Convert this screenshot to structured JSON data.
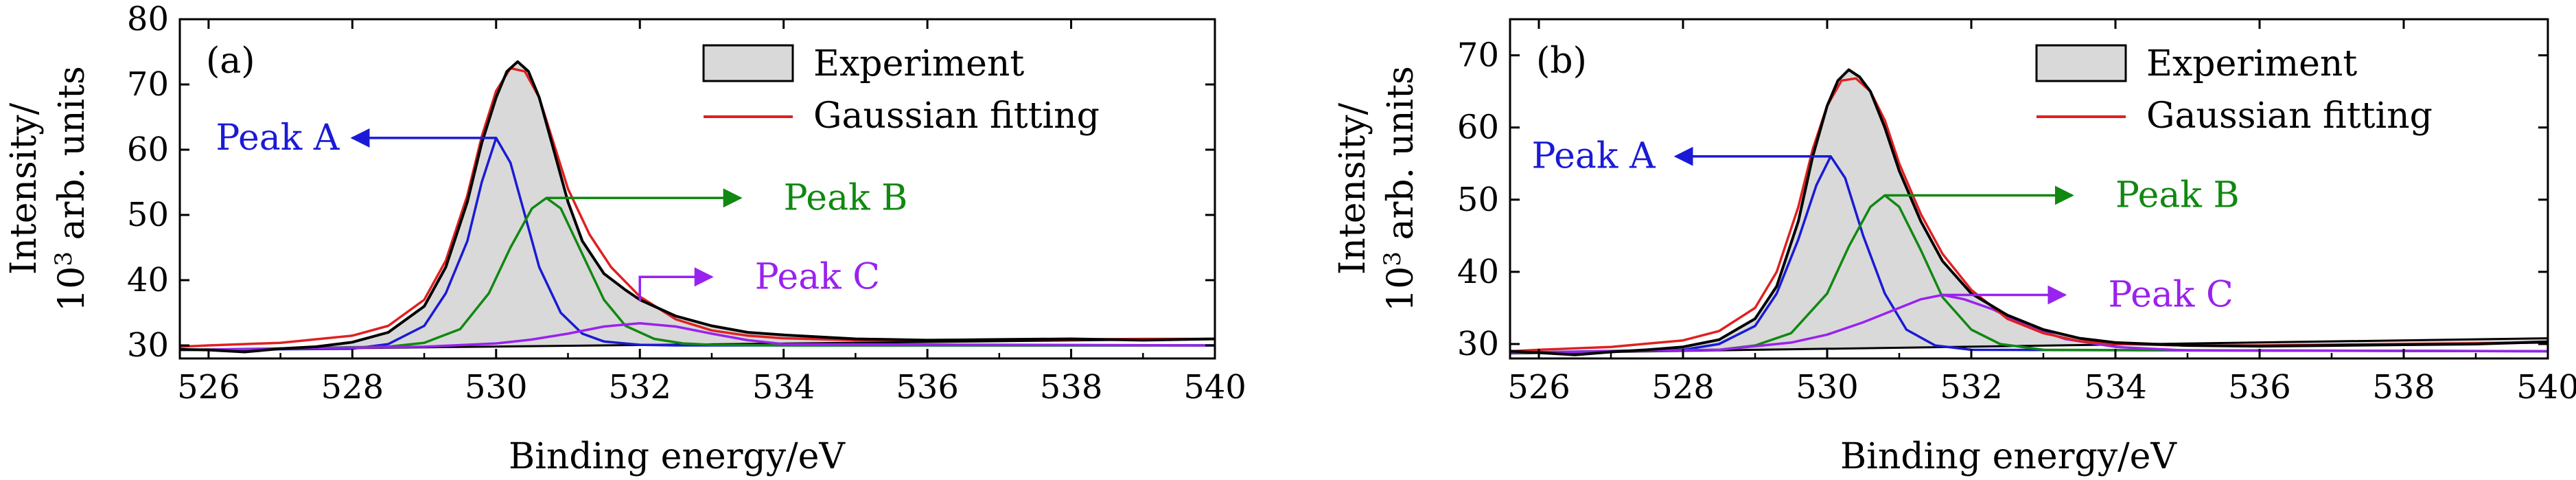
{
  "chart_data": [
    {
      "type": "line",
      "panel_label": "(a)",
      "xlabel": "Binding energy/eV",
      "ylabel_line1": "Intensity/",
      "ylabel_line2_base": "10",
      "ylabel_line2_sup": "3",
      "ylabel_line2_rest": " arb. units",
      "xlim": [
        525.6,
        540
      ],
      "ylim": [
        28,
        80
      ],
      "xticks": [
        526,
        528,
        530,
        532,
        534,
        536,
        538,
        540
      ],
      "yticks": [
        30,
        40,
        50,
        60,
        70,
        80
      ],
      "legend_position": "top-right",
      "legend": [
        {
          "label": "Experiment",
          "kind": "box"
        },
        {
          "label": "Gaussian fitting",
          "kind": "line"
        }
      ],
      "baseline": {
        "x": [
          525.6,
          540
        ],
        "y": [
          29.3,
          31.0
        ]
      },
      "series": [
        {
          "name": "Experiment",
          "role": "experiment",
          "x": [
            525.6,
            526.0,
            526.5,
            527.0,
            527.5,
            528.0,
            528.5,
            529.0,
            529.3,
            529.6,
            529.8,
            530.0,
            530.15,
            530.3,
            530.45,
            530.6,
            530.8,
            531.0,
            531.2,
            531.5,
            531.8,
            532.0,
            532.5,
            533.0,
            533.5,
            534.0,
            535.0,
            536.0,
            537.0,
            538.0,
            539.0,
            540.0
          ],
          "y": [
            29.4,
            29.3,
            29.0,
            29.5,
            29.8,
            30.5,
            32.0,
            36.0,
            42.0,
            52.0,
            61.0,
            68.0,
            72.0,
            73.5,
            72.0,
            68.0,
            60.0,
            52.0,
            46.0,
            41.0,
            38.5,
            37.0,
            34.5,
            33.0,
            32.0,
            31.6,
            31.0,
            30.8,
            30.9,
            31.0,
            30.8,
            31.0
          ]
        },
        {
          "name": "Gaussian fitting",
          "role": "fit",
          "x": [
            525.6,
            526.0,
            527.0,
            528.0,
            528.5,
            529.0,
            529.3,
            529.6,
            529.8,
            530.0,
            530.2,
            530.4,
            530.6,
            530.8,
            531.0,
            531.3,
            531.6,
            532.0,
            532.5,
            533.0,
            533.5,
            534.0,
            535.0,
            536.0,
            537.0,
            538.0,
            539.0,
            540.0
          ],
          "y": [
            29.8,
            30.0,
            30.4,
            31.5,
            33.0,
            37.0,
            43.0,
            53.0,
            62.0,
            69.0,
            72.5,
            72.0,
            68.0,
            61.0,
            54.0,
            47.0,
            42.0,
            37.5,
            34.0,
            32.3,
            31.5,
            31.1,
            30.8,
            30.8,
            30.9,
            30.9,
            31.0,
            31.0
          ]
        },
        {
          "name": "Peak A",
          "role": "peak",
          "center": 530.0,
          "amplitude": 61.8,
          "sigma": 0.55,
          "x": [
            525.6,
            528.0,
            528.5,
            529.0,
            529.3,
            529.6,
            529.8,
            530.0,
            530.2,
            530.4,
            530.6,
            530.9,
            531.2,
            531.5,
            532.0,
            532.5,
            533.0,
            540.0
          ],
          "y": [
            29.3,
            29.5,
            30.2,
            33.0,
            38.0,
            46.0,
            55.0,
            61.8,
            58.0,
            50.0,
            42.0,
            35.0,
            31.8,
            30.6,
            30.1,
            30.0,
            30.0,
            30.0
          ]
        },
        {
          "name": "Peak B",
          "role": "peak",
          "center": 530.7,
          "amplitude": 52.6,
          "sigma": 0.5,
          "x": [
            525.6,
            528.5,
            529.0,
            529.5,
            529.9,
            530.2,
            530.5,
            530.7,
            530.9,
            531.2,
            531.5,
            531.8,
            532.2,
            532.6,
            533.0,
            534.0,
            540.0
          ],
          "y": [
            29.3,
            29.8,
            30.4,
            32.5,
            38.0,
            45.0,
            51.0,
            52.6,
            51.0,
            44.0,
            37.0,
            33.0,
            31.0,
            30.3,
            30.1,
            30.0,
            30.0
          ]
        },
        {
          "name": "Peak C",
          "role": "peak",
          "center": 532.0,
          "amplitude": 33.4,
          "sigma": 0.8,
          "x": [
            525.6,
            529.0,
            530.0,
            530.5,
            531.0,
            531.5,
            532.0,
            532.5,
            533.0,
            533.5,
            534.0,
            540.0
          ],
          "y": [
            29.3,
            29.8,
            30.3,
            30.9,
            31.8,
            32.9,
            33.4,
            32.9,
            31.8,
            30.8,
            30.2,
            30.0
          ]
        }
      ],
      "annotations": [
        {
          "text": "Peak A",
          "color": "#1a1ad6",
          "from": [
            530.0,
            61.8
          ],
          "to": [
            528.0,
            61.8
          ],
          "text_x": 526.1
        },
        {
          "text": "Peak B",
          "color": "#118811",
          "from": [
            530.7,
            52.6
          ],
          "to": [
            533.4,
            52.6
          ],
          "text_x": 534.0
        },
        {
          "text": "Peak C",
          "color": "#9922ee",
          "from": [
            532.0,
            36.8
          ],
          "to": [
            532.0,
            40.5
          ],
          "turn_to": [
            533.0,
            40.5
          ],
          "text_x": 533.6
        }
      ]
    },
    {
      "type": "line",
      "panel_label": "(b)",
      "xlabel": "Binding energy/eV",
      "ylabel_line1": "Intensity/",
      "ylabel_line2_base": "10",
      "ylabel_line2_sup": "3",
      "ylabel_line2_rest": " arb. units",
      "xlim": [
        525.6,
        540
      ],
      "ylim": [
        28,
        75
      ],
      "xticks": [
        526,
        528,
        530,
        532,
        534,
        536,
        538,
        540
      ],
      "yticks": [
        30,
        40,
        50,
        60,
        70
      ],
      "legend_position": "top-right",
      "legend": [
        {
          "label": "Experiment",
          "kind": "box"
        },
        {
          "label": "Gaussian fitting",
          "kind": "line"
        }
      ],
      "baseline": {
        "x": [
          525.6,
          540
        ],
        "y": [
          28.7,
          30.8
        ]
      },
      "series": [
        {
          "name": "Experiment",
          "role": "experiment",
          "x": [
            525.6,
            526.0,
            526.5,
            527.0,
            527.5,
            528.0,
            528.5,
            529.0,
            529.3,
            529.6,
            529.8,
            530.0,
            530.15,
            530.3,
            530.45,
            530.6,
            530.8,
            531.0,
            531.3,
            531.6,
            532.0,
            532.5,
            533.0,
            533.5,
            534.0,
            535.0,
            536.0,
            537.0,
            538.0,
            539.0,
            540.0
          ],
          "y": [
            29.0,
            28.8,
            28.5,
            28.9,
            29.2,
            29.6,
            30.6,
            33.5,
            38.0,
            47.0,
            56.0,
            63.0,
            66.5,
            68.0,
            67.0,
            65.0,
            60.0,
            54.0,
            47.0,
            41.5,
            37.0,
            34.0,
            32.0,
            30.8,
            30.2,
            29.8,
            29.7,
            29.8,
            29.9,
            30.0,
            30.3
          ]
        },
        {
          "name": "Gaussian fitting",
          "role": "fit",
          "x": [
            525.6,
            526.0,
            527.0,
            528.0,
            528.5,
            529.0,
            529.3,
            529.6,
            529.8,
            530.0,
            530.2,
            530.4,
            530.6,
            530.8,
            531.0,
            531.3,
            531.6,
            532.0,
            532.5,
            533.0,
            533.5,
            534.0,
            535.0,
            536.0,
            537.0,
            538.0,
            539.0,
            540.0
          ],
          "y": [
            29.0,
            29.2,
            29.6,
            30.5,
            31.8,
            35.0,
            40.0,
            49.0,
            57.0,
            63.0,
            66.5,
            66.8,
            65.0,
            61.0,
            55.0,
            48.0,
            42.5,
            37.5,
            33.5,
            31.5,
            30.4,
            30.0,
            29.8,
            29.8,
            29.9,
            30.0,
            30.1,
            30.2
          ]
        },
        {
          "name": "Peak A",
          "role": "peak",
          "center": 530.05,
          "amplitude": 56.0,
          "sigma": 0.5,
          "x": [
            525.6,
            528.0,
            528.5,
            529.0,
            529.3,
            529.6,
            529.85,
            530.05,
            530.25,
            530.5,
            530.8,
            531.1,
            531.5,
            532.0,
            540.0
          ],
          "y": [
            28.8,
            29.2,
            30.0,
            32.5,
            37.0,
            44.5,
            52.0,
            56.0,
            53.0,
            45.0,
            37.0,
            32.0,
            29.8,
            29.2,
            29.0
          ]
        },
        {
          "name": "Peak B",
          "role": "peak",
          "center": 530.8,
          "amplitude": 50.6,
          "sigma": 0.5,
          "x": [
            525.6,
            528.5,
            529.0,
            529.5,
            530.0,
            530.3,
            530.6,
            530.8,
            531.0,
            531.3,
            531.6,
            532.0,
            532.4,
            533.0,
            540.0
          ],
          "y": [
            28.8,
            29.2,
            29.8,
            31.5,
            37.0,
            43.5,
            49.0,
            50.6,
            49.0,
            43.0,
            36.5,
            32.0,
            30.0,
            29.2,
            29.0
          ]
        },
        {
          "name": "Peak C",
          "role": "peak",
          "center": 531.6,
          "amplitude": 36.8,
          "sigma": 0.85,
          "x": [
            525.6,
            528.5,
            529.5,
            530.0,
            530.5,
            531.0,
            531.3,
            531.6,
            531.9,
            532.3,
            532.8,
            533.3,
            534.0,
            535.0,
            540.0
          ],
          "y": [
            28.8,
            29.2,
            30.2,
            31.3,
            33.0,
            35.0,
            36.2,
            36.8,
            36.2,
            34.8,
            32.4,
            30.7,
            29.6,
            29.1,
            29.0
          ]
        }
      ],
      "annotations": [
        {
          "text": "Peak A",
          "color": "#1a1ad6",
          "from": [
            530.05,
            56.0
          ],
          "to": [
            527.9,
            56.0
          ],
          "text_x": 525.9
        },
        {
          "text": "Peak B",
          "color": "#118811",
          "from": [
            530.8,
            50.6
          ],
          "to": [
            533.4,
            50.6
          ],
          "text_x": 534.0
        },
        {
          "text": "Peak C",
          "color": "#9922ee",
          "from": [
            531.6,
            36.8
          ],
          "to": [
            533.3,
            36.8
          ],
          "text_x": 533.9
        }
      ]
    }
  ],
  "colors": {
    "experiment": "#000000",
    "fit": "#e02020",
    "fill": "#d9d9d9",
    "peak_a": "#1a1ad6",
    "peak_b": "#118811",
    "peak_c": "#9922ee"
  }
}
